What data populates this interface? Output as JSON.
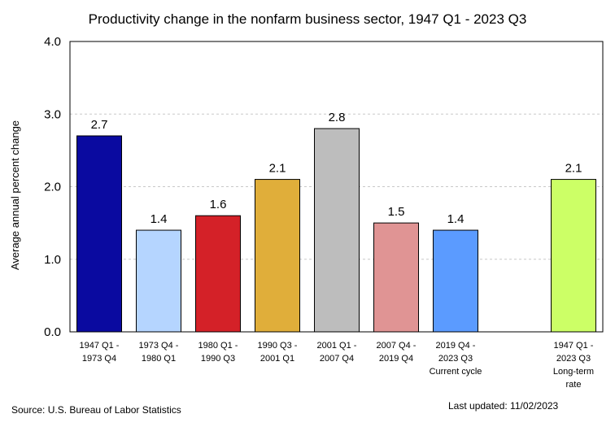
{
  "chart_data": {
    "type": "bar",
    "title": "Productivity change in the nonfarm business sector, 1947 Q1 - 2023 Q3",
    "xlabel": "",
    "ylabel": "Average annual percent change",
    "ylim": [
      0,
      4
    ],
    "yticks": [
      "0.0",
      "1.0",
      "2.0",
      "3.0",
      "4.0"
    ],
    "grid": true,
    "categories": [
      [
        "1947 Q1 -",
        "1973 Q4"
      ],
      [
        "1973 Q4 -",
        "1980 Q1"
      ],
      [
        "1980 Q1 -",
        "1990 Q3"
      ],
      [
        "1990 Q3 -",
        "2001 Q1"
      ],
      [
        "2001 Q1 -",
        "2007 Q4"
      ],
      [
        "2007 Q4 -",
        "2019 Q4"
      ],
      [
        "2019 Q4 -",
        "2023 Q3",
        "Current cycle"
      ],
      [
        "1947 Q1 -",
        "2023 Q3",
        "Long-term",
        "rate"
      ]
    ],
    "values": [
      2.7,
      1.4,
      1.6,
      2.1,
      2.8,
      1.5,
      1.4,
      2.1
    ],
    "value_labels": [
      "2.7",
      "1.4",
      "1.6",
      "2.1",
      "2.8",
      "1.5",
      "1.4",
      "2.1"
    ],
    "colors": [
      "#0a0aa0",
      "#b5d5ff",
      "#d42128",
      "#e0ae3a",
      "#bdbdbd",
      "#e09494",
      "#5b9bff",
      "#ccff66"
    ]
  },
  "footer": {
    "source": "Source: U.S. Bureau of Labor Statistics",
    "updated": "Last updated: 11/02/2023"
  }
}
